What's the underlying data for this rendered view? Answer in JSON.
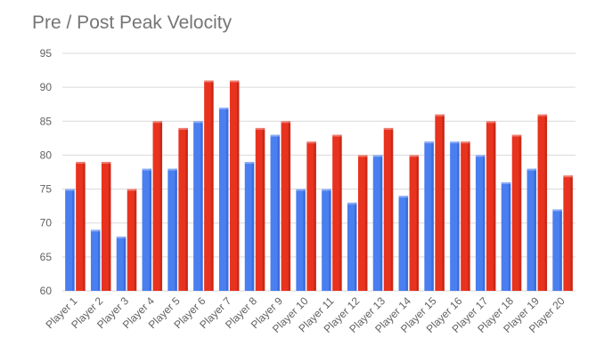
{
  "chart_data": {
    "type": "bar",
    "title": "Pre / Post Peak Velocity",
    "xlabel": "",
    "ylabel": "",
    "ylim": [
      60,
      95
    ],
    "yticks": [
      60,
      65,
      70,
      75,
      80,
      85,
      90,
      95
    ],
    "grid": true,
    "legend": "none",
    "categories": [
      "Player 1",
      "Player 2",
      "Player 3",
      "Player 4",
      "Player 5",
      "Player 6",
      "Player 7",
      "Player 8",
      "Player 9",
      "Player 10",
      "Player 11",
      "Player 12",
      "Player 13",
      "Player 14",
      "Player 15",
      "Player 16",
      "Player 17",
      "Player 18",
      "Player 19",
      "Player 20"
    ],
    "series": [
      {
        "color": "#4a7ff0",
        "values": [
          75,
          69,
          68,
          78,
          78,
          85,
          87,
          79,
          83,
          75,
          75,
          73,
          80,
          74,
          82,
          82,
          80,
          76,
          78,
          72
        ]
      },
      {
        "color": "#e8331f",
        "values": [
          79,
          79,
          75,
          85,
          84,
          91,
          91,
          84,
          85,
          82,
          83,
          80,
          84,
          80,
          86,
          82,
          85,
          83,
          86,
          77
        ]
      }
    ]
  }
}
